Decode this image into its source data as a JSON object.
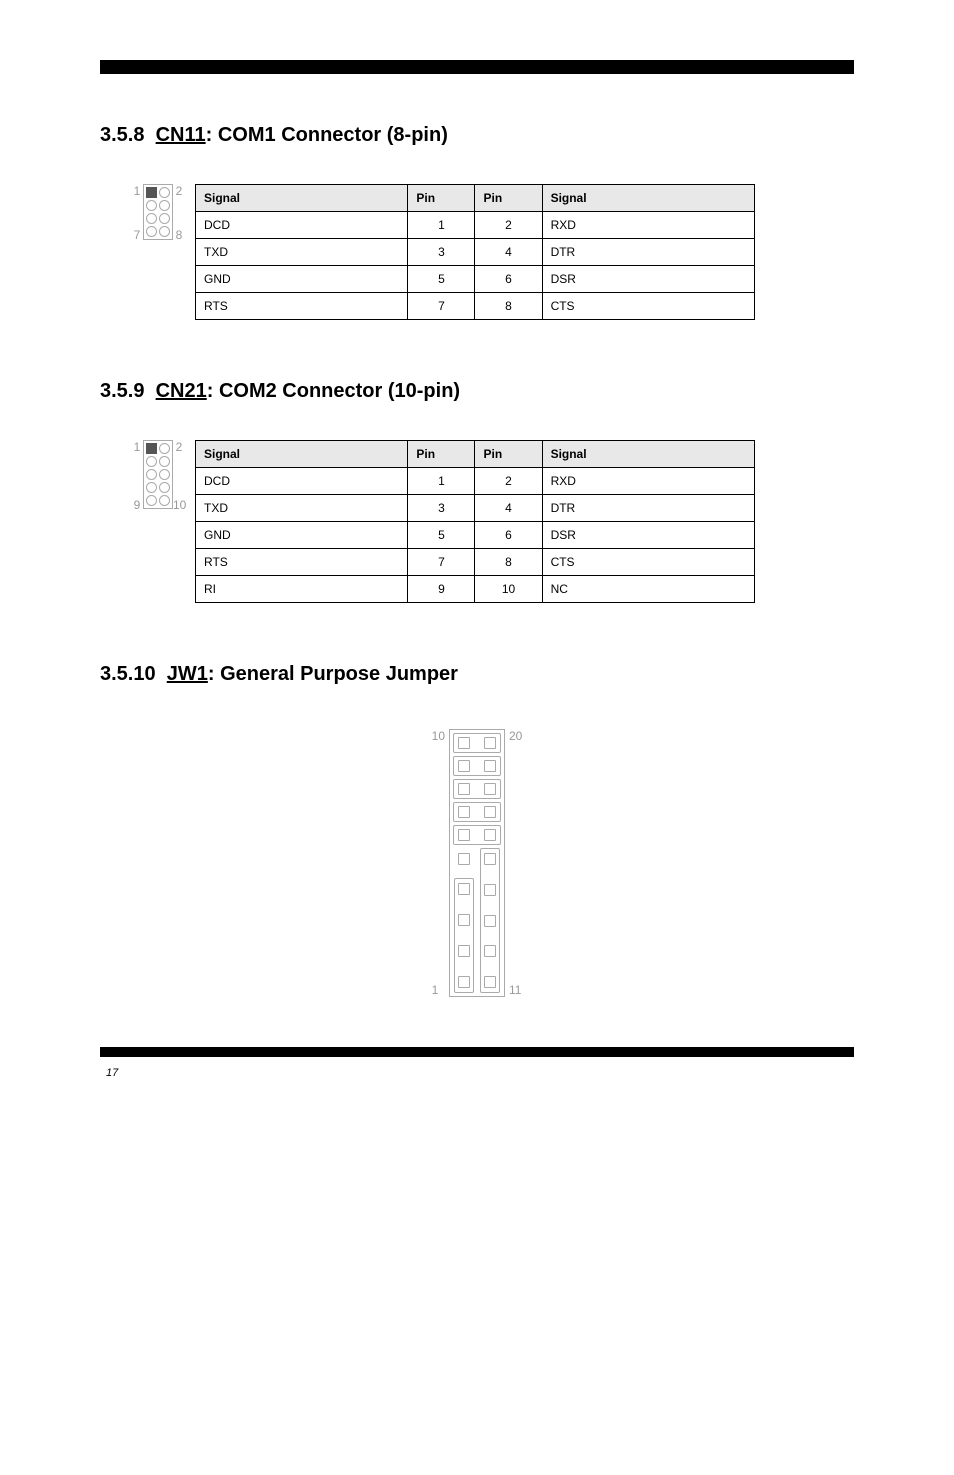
{
  "section_com1": {
    "number": "3.5.8",
    "title_prefix": "CN11",
    "title": ": COM1 Connector (8-pin)",
    "conn": {
      "left_top": "1",
      "right_top": "2",
      "left_bot": "7",
      "right_bot": "8",
      "rows": 4
    },
    "headers": [
      "Signal",
      "Pin",
      "Pin",
      "Signal"
    ],
    "rows": [
      [
        "DCD",
        "1",
        "2",
        "RXD"
      ],
      [
        "TXD",
        "3",
        "4",
        "DTR"
      ],
      [
        "GND",
        "5",
        "6",
        "DSR"
      ],
      [
        "RTS",
        "7",
        "8",
        "CTS"
      ]
    ]
  },
  "section_com2": {
    "number": "3.5.9",
    "title_prefix": "CN21",
    "title": ": COM2 Connector (10-pin)",
    "conn": {
      "left_top": "1",
      "right_top": "2",
      "left_bot": "9",
      "right_bot": "10",
      "rows": 5
    },
    "headers": [
      "Signal",
      "Pin",
      "Pin",
      "Signal"
    ],
    "rows": [
      [
        "DCD",
        "1",
        "2",
        "RXD"
      ],
      [
        "TXD",
        "3",
        "4",
        "DTR"
      ],
      [
        "GND",
        "5",
        "6",
        "DSR"
      ],
      [
        "RTS",
        "7",
        "8",
        "CTS"
      ],
      [
        "RI",
        "9",
        "10",
        "NC"
      ]
    ]
  },
  "section_jw1": {
    "number": "3.5.10",
    "title_prefix": "JW1",
    "title": ": General Purpose Jumper",
    "labels": {
      "tl": "10",
      "tr": "20",
      "bl": "1",
      "br": "11"
    },
    "row_count": 10
  },
  "page_footer": "17"
}
